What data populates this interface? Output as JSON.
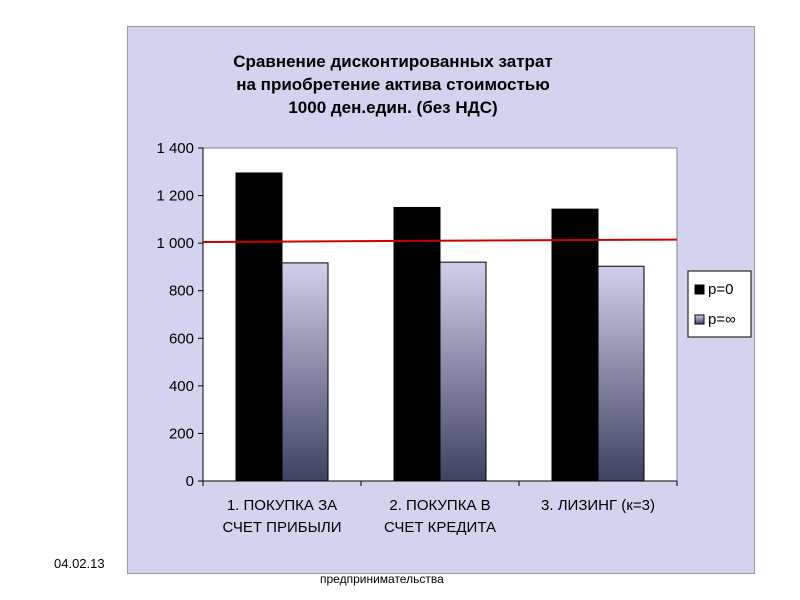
{
  "slide": {
    "date": "04.02.13",
    "footer": "предпринимательства"
  },
  "colors": {
    "frame_bg": "#d3d3f0",
    "plot_bg": "#ffffff",
    "series_p0": "#000000",
    "series_pinf_top": "#d0d0ec",
    "series_pinf_bottom": "#404060",
    "reference_line": "#cc0000"
  },
  "chart_data": {
    "type": "bar",
    "title": [
      "Сравнение дисконтированных затрат",
      "на приобретение актива стоимостью",
      "1000 ден.един. (без НДС)"
    ],
    "categories": [
      [
        "1. ПОКУПКА  ЗА",
        "СЧЕТ  ПРИБЫЛИ"
      ],
      [
        "2. ПОКУПКА В",
        "СЧЕТ КРЕДИТА"
      ],
      [
        "3. ЛИЗИНГ (к=3)"
      ]
    ],
    "series": [
      {
        "name": "p=0",
        "values": [
          1295,
          1150,
          1143
        ]
      },
      {
        "name": "p=∞",
        "values": [
          917,
          920,
          903
        ]
      }
    ],
    "reference_line": {
      "from": 1005,
      "to": 1015
    },
    "ylim": [
      0,
      1400
    ],
    "yticks": [
      "0",
      "200",
      "400",
      "600",
      "800",
      "1 000",
      "1 200",
      "1 400"
    ],
    "ytick_values": [
      0,
      200,
      400,
      600,
      800,
      1000,
      1200,
      1400
    ],
    "legend_position": "right",
    "grid": false
  }
}
